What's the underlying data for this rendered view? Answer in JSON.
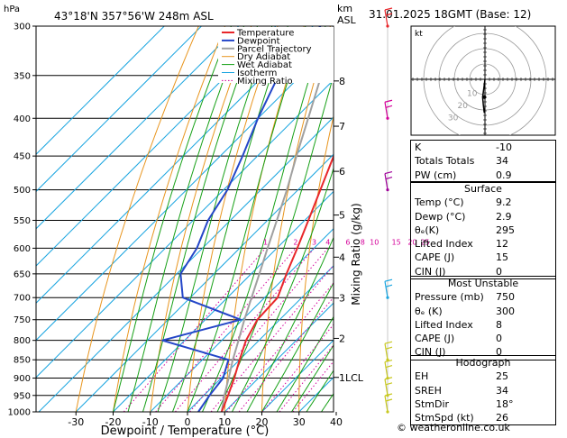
{
  "header": {
    "hpa_label": "hPa",
    "location": "43°18'N  357°56'W  248m  ASL",
    "km_label": "km",
    "asl_label": "ASL",
    "datetime": "31.01.2025  18GMT  (Base: 12)"
  },
  "colors": {
    "temperature": "#e8262a",
    "dewpoint": "#2446c8",
    "parcel": "#a0a0a0",
    "dry_adiabat": "#e8951e",
    "wet_adiabat": "#16a016",
    "isotherm": "#1aa5e0",
    "mixing_ratio": "#d4009a"
  },
  "chart_data": {
    "type": "line",
    "title": "",
    "xlabel": "Dewpoint / Temperature (°C)",
    "ylabel": "hPa",
    "ylabel_right": "Mixing Ratio (g/kg)",
    "x_ticks": [
      -30,
      -20,
      -10,
      0,
      10,
      20,
      30,
      40
    ],
    "pressure_ticks": [
      300,
      350,
      400,
      450,
      500,
      550,
      600,
      650,
      700,
      750,
      800,
      850,
      900,
      950,
      1000
    ],
    "xlim": [
      -35,
      40
    ],
    "ylim": [
      1000,
      300
    ],
    "y_scale": "log",
    "skew": "45 degrees",
    "km_ticks": [
      {
        "label": "8",
        "p": 356
      },
      {
        "label": "7",
        "p": 410
      },
      {
        "label": "6",
        "p": 472
      },
      {
        "label": "5",
        "p": 541
      },
      {
        "label": "4",
        "p": 617
      },
      {
        "label": "3",
        "p": 701
      },
      {
        "label": "2",
        "p": 795
      },
      {
        "label": "1LCL",
        "p": 898
      }
    ],
    "mixing_ratio_labels": [
      "1",
      "2",
      "3",
      "4",
      "6",
      "8",
      "10",
      "15",
      "20",
      "25"
    ],
    "mixing_ratio_values": [
      1,
      2,
      3,
      4,
      6,
      8,
      10,
      15,
      20,
      25
    ],
    "legend": [
      "Temperature",
      "Dewpoint",
      "Parcel Trajectory",
      "Dry Adiabat",
      "Wet Adiabat",
      "Isotherm",
      "Mixing Ratio"
    ],
    "legend_position": "top-left",
    "series": [
      {
        "name": "Temperature",
        "p": [
          1000,
          950,
          900,
          850,
          800,
          750,
          700,
          650,
          600,
          550,
          500,
          450,
          400,
          350,
          300
        ],
        "t": [
          9.2,
          6.5,
          3.5,
          0,
          -3.5,
          -6,
          -6.5,
          -10.5,
          -14.5,
          -19,
          -24,
          -29.5,
          -36,
          -43,
          -50
        ]
      },
      {
        "name": "Dewpoint",
        "p": [
          1000,
          950,
          900,
          850,
          800,
          750,
          700,
          650,
          600,
          550,
          500,
          450,
          400,
          350,
          300
        ],
        "t": [
          2.9,
          1.5,
          0.5,
          -3,
          -26,
          -10.5,
          -32,
          -39,
          -41.5,
          -46,
          -49,
          -54,
          -60,
          -66,
          -68
        ]
      },
      {
        "name": "Parcel Trajectory",
        "p": [
          1000,
          950,
          900,
          850,
          800,
          750,
          700,
          650,
          600,
          550,
          500,
          450,
          400,
          350,
          300
        ],
        "t": [
          9.2,
          5.5,
          2.0,
          -1.8,
          -5.5,
          -9.5,
          -13.5,
          -17.8,
          -22.5,
          -27.5,
          -33,
          -39.5,
          -46.5,
          -54.5,
          -63
        ]
      }
    ]
  },
  "hodograph": {
    "label": "kt",
    "ring_labels": [
      "10",
      "20",
      "30"
    ],
    "points": [
      [
        0,
        0
      ],
      [
        -0.5,
        -4
      ],
      [
        -1.2,
        -9
      ],
      [
        -0.8,
        -13
      ],
      [
        -0.3,
        -17
      ]
    ]
  },
  "wind_barbs": [
    {
      "p": 300,
      "color": "#e8262a"
    },
    {
      "p": 400,
      "color": "#d4009a"
    },
    {
      "p": 500,
      "color": "#a0009a"
    },
    {
      "p": 700,
      "color": "#1aa5e0"
    },
    {
      "p": 850,
      "color": "#c8c820"
    },
    {
      "p": 900,
      "color": "#c8c820"
    },
    {
      "p": 950,
      "color": "#c8c820"
    },
    {
      "p": 1000,
      "color": "#c8c820"
    }
  ],
  "indices": {
    "rows": [
      {
        "label": "K",
        "value": "-10"
      },
      {
        "label": "Totals Totals",
        "value": "34"
      },
      {
        "label": "PW (cm)",
        "value": "0.9"
      }
    ]
  },
  "surface": {
    "title": "Surface",
    "rows": [
      {
        "label": "Temp (°C)",
        "value": "9.2"
      },
      {
        "label": "Dewp (°C)",
        "value": "2.9"
      },
      {
        "label": "θₑ(K)",
        "value": "295"
      },
      {
        "label": "Lifted Index",
        "value": "12"
      },
      {
        "label": "CAPE (J)",
        "value": "15"
      },
      {
        "label": "CIN (J)",
        "value": "0"
      }
    ]
  },
  "most_unstable": {
    "title": "Most Unstable",
    "rows": [
      {
        "label": "Pressure (mb)",
        "value": "750"
      },
      {
        "label": "θₑ (K)",
        "value": "300"
      },
      {
        "label": "Lifted Index",
        "value": "8"
      },
      {
        "label": "CAPE (J)",
        "value": "0"
      },
      {
        "label": "CIN (J)",
        "value": "0"
      }
    ]
  },
  "hodograph_table": {
    "title": "Hodograph",
    "rows": [
      {
        "label": "EH",
        "value": "25"
      },
      {
        "label": "SREH",
        "value": "34"
      },
      {
        "label": "StmDir",
        "value": "18°"
      },
      {
        "label": "StmSpd (kt)",
        "value": "26"
      }
    ]
  },
  "credit": "© weatheronline.co.uk"
}
